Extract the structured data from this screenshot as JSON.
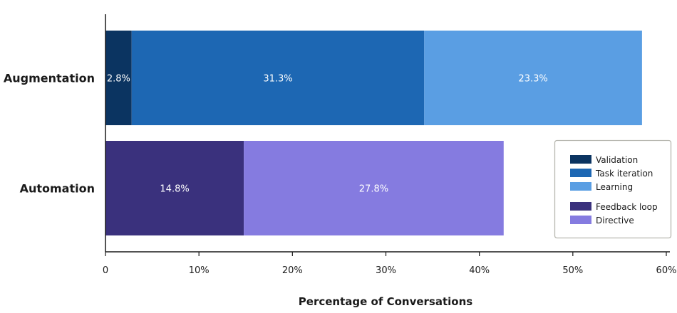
{
  "chart_data": {
    "type": "bar",
    "orientation": "horizontal",
    "stacked": true,
    "xlabel": "Percentage of Conversations",
    "xlim": [
      0,
      60
    ],
    "xticks": [
      0,
      10,
      20,
      30,
      40,
      50,
      60
    ],
    "xtick_labels": [
      "0",
      "10%",
      "20%",
      "30%",
      "40%",
      "50%",
      "60%"
    ],
    "grid": false,
    "legend_position": "right",
    "categories": [
      {
        "name": "Augmentation",
        "segments": [
          {
            "name": "Validation",
            "value": 2.8,
            "label": "2.8%",
            "color": "#0b3461"
          },
          {
            "name": "Task iteration",
            "value": 31.3,
            "label": "31.3%",
            "color": "#1d67b3"
          },
          {
            "name": "Learning",
            "value": 23.3,
            "label": "23.3%",
            "color": "#5a9ee3"
          }
        ]
      },
      {
        "name": "Automation",
        "segments": [
          {
            "name": "Feedback loop",
            "value": 14.8,
            "label": "14.8%",
            "color": "#3a317d"
          },
          {
            "name": "Directive",
            "value": 27.8,
            "label": "27.8%",
            "color": "#857be0"
          }
        ]
      }
    ],
    "legend": [
      {
        "group": "augmentation",
        "items": [
          {
            "name": "Validation",
            "color": "#0b3461"
          },
          {
            "name": "Task iteration",
            "color": "#1d67b3"
          },
          {
            "name": "Learning",
            "color": "#5a9ee3"
          }
        ]
      },
      {
        "group": "automation",
        "items": [
          {
            "name": "Feedback loop",
            "color": "#3a317d"
          },
          {
            "name": "Directive",
            "color": "#857be0"
          }
        ]
      }
    ]
  }
}
